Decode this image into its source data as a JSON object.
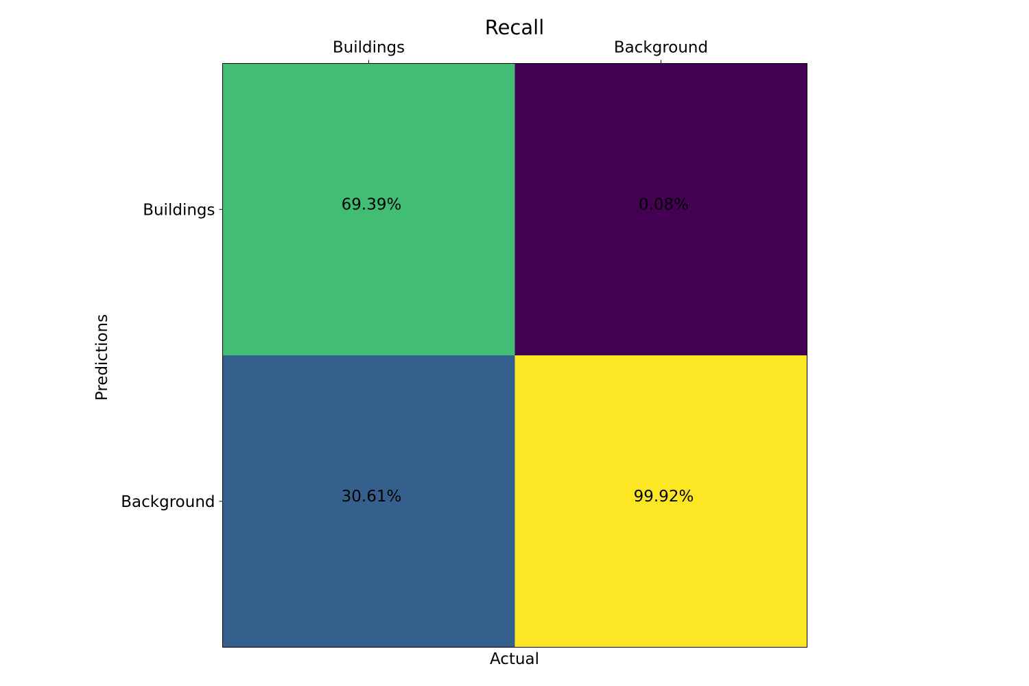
{
  "chart_data": {
    "type": "heatmap",
    "title": "Recall",
    "xlabel": "Actual",
    "ylabel": "Predictions",
    "x_categories": [
      "Buildings",
      "Background"
    ],
    "y_categories": [
      "Buildings",
      "Background"
    ],
    "x_tick_position": "top",
    "values": [
      [
        69.39,
        0.08
      ],
      [
        30.61,
        99.92
      ]
    ],
    "value_labels": [
      [
        "69.39%",
        "0.08%"
      ],
      [
        "30.61%",
        "99.92%"
      ]
    ],
    "value_range": [
      0,
      100
    ],
    "colormap": "viridis",
    "cell_colors": [
      [
        "#42bd74",
        "#440154"
      ],
      [
        "#35608d",
        "#fde725"
      ]
    ],
    "legend": "none",
    "grid": false
  }
}
